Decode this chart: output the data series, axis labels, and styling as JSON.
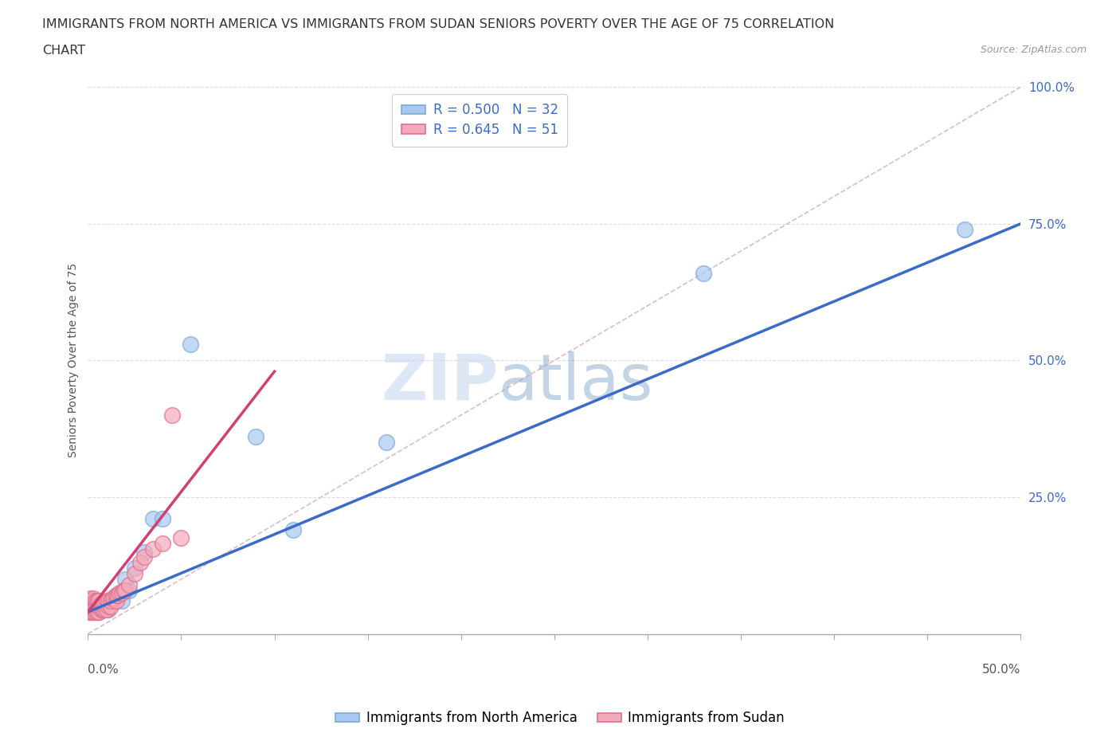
{
  "title_line1": "IMMIGRANTS FROM NORTH AMERICA VS IMMIGRANTS FROM SUDAN SENIORS POVERTY OVER THE AGE OF 75 CORRELATION",
  "title_line2": "CHART",
  "source": "Source: ZipAtlas.com",
  "ylabel": "Seniors Poverty Over the Age of 75",
  "r_north_america": 0.5,
  "n_north_america": 32,
  "r_sudan": 0.645,
  "n_sudan": 51,
  "legend_label_blue": "Immigrants from North America",
  "legend_label_pink": "Immigrants from Sudan",
  "blue_color": "#A8C8F0",
  "pink_color": "#F4AABB",
  "blue_edge": "#7AAAD8",
  "pink_edge": "#E07090",
  "regression_blue_color": "#3A6BC8",
  "regression_pink_color": "#D04070",
  "watermark_zip": "ZIP",
  "watermark_atlas": "atlas",
  "xlim": [
    0,
    0.5
  ],
  "ylim": [
    0,
    1.0
  ],
  "blue_scatter_x": [
    0.001,
    0.002,
    0.002,
    0.003,
    0.003,
    0.004,
    0.004,
    0.005,
    0.005,
    0.006,
    0.006,
    0.007,
    0.008,
    0.009,
    0.01,
    0.011,
    0.012,
    0.013,
    0.015,
    0.018,
    0.02,
    0.022,
    0.025,
    0.03,
    0.035,
    0.04,
    0.055,
    0.09,
    0.11,
    0.16,
    0.33,
    0.47
  ],
  "blue_scatter_y": [
    0.04,
    0.045,
    0.05,
    0.04,
    0.05,
    0.04,
    0.05,
    0.04,
    0.055,
    0.04,
    0.05,
    0.045,
    0.05,
    0.045,
    0.05,
    0.045,
    0.055,
    0.06,
    0.07,
    0.06,
    0.1,
    0.08,
    0.12,
    0.15,
    0.21,
    0.21,
    0.53,
    0.36,
    0.19,
    0.35,
    0.66,
    0.74
  ],
  "pink_scatter_x": [
    0.001,
    0.001,
    0.001,
    0.001,
    0.001,
    0.002,
    0.002,
    0.002,
    0.002,
    0.003,
    0.003,
    0.003,
    0.003,
    0.004,
    0.004,
    0.004,
    0.005,
    0.005,
    0.005,
    0.006,
    0.006,
    0.006,
    0.007,
    0.007,
    0.008,
    0.008,
    0.009,
    0.009,
    0.01,
    0.01,
    0.011,
    0.011,
    0.012,
    0.012,
    0.013,
    0.014,
    0.015,
    0.015,
    0.016,
    0.017,
    0.018,
    0.019,
    0.02,
    0.022,
    0.025,
    0.028,
    0.03,
    0.035,
    0.04,
    0.045,
    0.05
  ],
  "pink_scatter_y": [
    0.04,
    0.05,
    0.055,
    0.06,
    0.065,
    0.04,
    0.048,
    0.055,
    0.06,
    0.04,
    0.048,
    0.055,
    0.065,
    0.04,
    0.05,
    0.06,
    0.04,
    0.05,
    0.06,
    0.04,
    0.05,
    0.06,
    0.045,
    0.055,
    0.045,
    0.055,
    0.045,
    0.055,
    0.045,
    0.06,
    0.05,
    0.06,
    0.05,
    0.06,
    0.065,
    0.065,
    0.06,
    0.07,
    0.07,
    0.075,
    0.075,
    0.08,
    0.08,
    0.09,
    0.11,
    0.13,
    0.14,
    0.155,
    0.165,
    0.4,
    0.175
  ],
  "blue_regline_x": [
    0.0,
    0.5
  ],
  "blue_regline_y": [
    0.04,
    0.75
  ],
  "pink_regline_x": [
    0.0,
    0.1
  ],
  "pink_regline_y": [
    0.04,
    0.48
  ],
  "diag_line_x": [
    0.0,
    0.5
  ],
  "diag_line_y": [
    0.0,
    1.0
  ],
  "background_color": "#FFFFFF",
  "title_color": "#333333",
  "source_color": "#999999",
  "title_fontsize": 11.5,
  "axis_label_fontsize": 10,
  "tick_fontsize": 11,
  "legend_fontsize": 12
}
